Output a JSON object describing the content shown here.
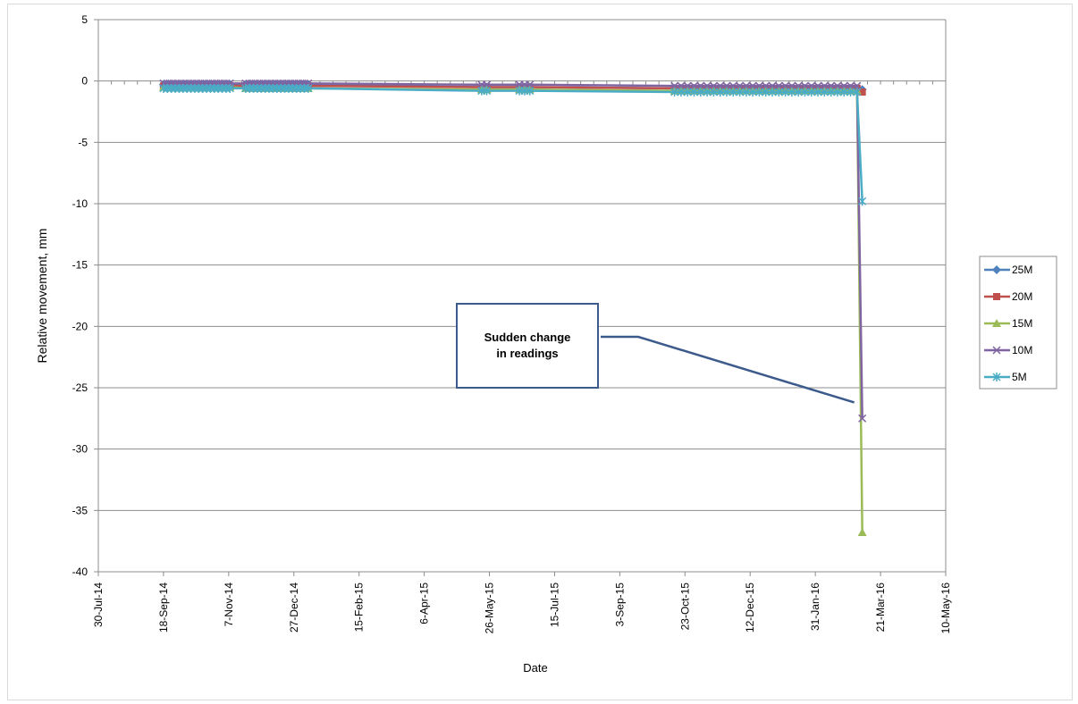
{
  "chart_data": {
    "type": "line",
    "xlabel": "Date",
    "ylabel": "Relative movement, mm",
    "ylim": [
      -40,
      5
    ],
    "yticks": [
      5,
      0,
      -5,
      -10,
      -15,
      -20,
      -25,
      -30,
      -35,
      -40
    ],
    "xlim": [
      "2014-07-30",
      "2016-05-10"
    ],
    "xtick_labels": [
      "30-Jul-14",
      "18-Sep-14",
      "7-Nov-14",
      "27-Dec-14",
      "15-Feb-15",
      "6-Apr-15",
      "26-May-15",
      "15-Jul-15",
      "3-Sep-15",
      "23-Oct-15",
      "12-Dec-15",
      "31-Jan-16",
      "21-Mar-16",
      "10-May-16"
    ],
    "grid": "horizontal",
    "legend_position": "right",
    "series": [
      {
        "name": "25M",
        "color": "#4f81bd",
        "marker": "diamond",
        "dates": [
          "2014-09-18",
          "2014-09-21",
          "2014-09-24",
          "2014-09-27",
          "2014-09-30",
          "2014-10-03",
          "2014-10-06",
          "2014-10-09",
          "2014-10-12",
          "2014-10-15",
          "2014-10-18",
          "2014-10-21",
          "2014-10-24",
          "2014-10-27",
          "2014-10-30",
          "2014-11-02",
          "2014-11-05",
          "2014-11-08",
          "2014-11-20",
          "2014-11-23",
          "2014-11-26",
          "2014-11-29",
          "2014-12-02",
          "2014-12-05",
          "2014-12-08",
          "2014-12-11",
          "2014-12-14",
          "2014-12-17",
          "2014-12-20",
          "2014-12-23",
          "2014-12-26",
          "2014-12-29",
          "2015-01-01",
          "2015-01-04",
          "2015-01-07",
          "2015-05-20",
          "2015-05-24",
          "2015-06-18",
          "2015-06-22",
          "2015-06-26",
          "2015-10-15",
          "2015-10-20",
          "2015-10-25",
          "2015-10-30",
          "2015-11-04",
          "2015-11-09",
          "2015-11-14",
          "2015-11-19",
          "2015-11-24",
          "2015-11-29",
          "2015-12-04",
          "2015-12-09",
          "2015-12-14",
          "2015-12-19",
          "2015-12-24",
          "2015-12-29",
          "2016-01-03",
          "2016-01-08",
          "2016-01-13",
          "2016-01-18",
          "2016-01-23",
          "2016-01-28",
          "2016-02-02",
          "2016-02-07",
          "2016-02-12",
          "2016-02-17",
          "2016-02-22",
          "2016-02-27",
          "2016-03-03",
          "2016-03-07"
        ],
        "values": [
          -0.3,
          -0.3,
          -0.3,
          -0.3,
          -0.3,
          -0.3,
          -0.3,
          -0.3,
          -0.3,
          -0.3,
          -0.3,
          -0.3,
          -0.3,
          -0.3,
          -0.3,
          -0.3,
          -0.3,
          -0.3,
          -0.3,
          -0.3,
          -0.3,
          -0.3,
          -0.3,
          -0.3,
          -0.3,
          -0.3,
          -0.3,
          -0.3,
          -0.3,
          -0.3,
          -0.3,
          -0.3,
          -0.3,
          -0.3,
          -0.3,
          -0.5,
          -0.5,
          -0.5,
          -0.5,
          -0.5,
          -0.6,
          -0.6,
          -0.6,
          -0.6,
          -0.6,
          -0.6,
          -0.6,
          -0.6,
          -0.6,
          -0.6,
          -0.6,
          -0.6,
          -0.6,
          -0.6,
          -0.6,
          -0.6,
          -0.6,
          -0.6,
          -0.6,
          -0.6,
          -0.6,
          -0.6,
          -0.6,
          -0.6,
          -0.6,
          -0.6,
          -0.6,
          -0.6,
          -0.6,
          -0.7
        ]
      },
      {
        "name": "20M",
        "color": "#c0504d",
        "marker": "square",
        "dates": [
          "2014-09-18",
          "2014-09-21",
          "2014-09-24",
          "2014-09-27",
          "2014-09-30",
          "2014-10-03",
          "2014-10-06",
          "2014-10-09",
          "2014-10-12",
          "2014-10-15",
          "2014-10-18",
          "2014-10-21",
          "2014-10-24",
          "2014-10-27",
          "2014-10-30",
          "2014-11-02",
          "2014-11-05",
          "2014-11-08",
          "2014-11-20",
          "2014-11-23",
          "2014-11-26",
          "2014-11-29",
          "2014-12-02",
          "2014-12-05",
          "2014-12-08",
          "2014-12-11",
          "2014-12-14",
          "2014-12-17",
          "2014-12-20",
          "2014-12-23",
          "2014-12-26",
          "2014-12-29",
          "2015-01-01",
          "2015-01-04",
          "2015-01-07",
          "2015-05-20",
          "2015-05-24",
          "2015-06-18",
          "2015-06-22",
          "2015-06-26",
          "2015-10-15",
          "2015-10-20",
          "2015-10-25",
          "2015-10-30",
          "2015-11-04",
          "2015-11-09",
          "2015-11-14",
          "2015-11-19",
          "2015-11-24",
          "2015-11-29",
          "2015-12-04",
          "2015-12-09",
          "2015-12-14",
          "2015-12-19",
          "2015-12-24",
          "2015-12-29",
          "2016-01-03",
          "2016-01-08",
          "2016-01-13",
          "2016-01-18",
          "2016-01-23",
          "2016-01-28",
          "2016-02-02",
          "2016-02-07",
          "2016-02-12",
          "2016-02-17",
          "2016-02-22",
          "2016-02-27",
          "2016-03-03",
          "2016-03-07"
        ],
        "values": [
          -0.4,
          -0.4,
          -0.4,
          -0.4,
          -0.4,
          -0.4,
          -0.4,
          -0.4,
          -0.4,
          -0.4,
          -0.4,
          -0.4,
          -0.4,
          -0.4,
          -0.4,
          -0.4,
          -0.4,
          -0.4,
          -0.4,
          -0.4,
          -0.4,
          -0.4,
          -0.4,
          -0.4,
          -0.4,
          -0.4,
          -0.4,
          -0.4,
          -0.4,
          -0.4,
          -0.4,
          -0.4,
          -0.4,
          -0.4,
          -0.4,
          -0.5,
          -0.5,
          -0.5,
          -0.5,
          -0.5,
          -0.6,
          -0.6,
          -0.6,
          -0.6,
          -0.6,
          -0.6,
          -0.6,
          -0.6,
          -0.6,
          -0.6,
          -0.6,
          -0.6,
          -0.6,
          -0.6,
          -0.6,
          -0.6,
          -0.6,
          -0.6,
          -0.6,
          -0.6,
          -0.6,
          -0.6,
          -0.6,
          -0.6,
          -0.6,
          -0.6,
          -0.6,
          -0.6,
          -0.6,
          -0.9
        ]
      },
      {
        "name": "15M",
        "color": "#9bbb59",
        "marker": "triangle",
        "dates": [
          "2014-09-18",
          "2014-09-21",
          "2014-09-24",
          "2014-09-27",
          "2014-09-30",
          "2014-10-03",
          "2014-10-06",
          "2014-10-09",
          "2014-10-12",
          "2014-10-15",
          "2014-10-18",
          "2014-10-21",
          "2014-10-24",
          "2014-10-27",
          "2014-10-30",
          "2014-11-02",
          "2014-11-05",
          "2014-11-08",
          "2014-11-20",
          "2014-11-23",
          "2014-11-26",
          "2014-11-29",
          "2014-12-02",
          "2014-12-05",
          "2014-12-08",
          "2014-12-11",
          "2014-12-14",
          "2014-12-17",
          "2014-12-20",
          "2014-12-23",
          "2014-12-26",
          "2014-12-29",
          "2015-01-01",
          "2015-01-04",
          "2015-01-07",
          "2015-05-20",
          "2015-05-24",
          "2015-06-18",
          "2015-06-22",
          "2015-06-26",
          "2015-10-15",
          "2015-10-20",
          "2015-10-25",
          "2015-10-30",
          "2015-11-04",
          "2015-11-09",
          "2015-11-14",
          "2015-11-19",
          "2015-11-24",
          "2015-11-29",
          "2015-12-04",
          "2015-12-09",
          "2015-12-14",
          "2015-12-19",
          "2015-12-24",
          "2015-12-29",
          "2016-01-03",
          "2016-01-08",
          "2016-01-13",
          "2016-01-18",
          "2016-01-23",
          "2016-01-28",
          "2016-02-02",
          "2016-02-07",
          "2016-02-12",
          "2016-02-17",
          "2016-02-22",
          "2016-02-27",
          "2016-03-03",
          "2016-03-07"
        ],
        "values": [
          -0.5,
          -0.5,
          -0.5,
          -0.5,
          -0.5,
          -0.5,
          -0.5,
          -0.5,
          -0.5,
          -0.5,
          -0.5,
          -0.5,
          -0.5,
          -0.5,
          -0.5,
          -0.5,
          -0.5,
          -0.5,
          -0.6,
          -0.6,
          -0.6,
          -0.6,
          -0.6,
          -0.6,
          -0.6,
          -0.6,
          -0.6,
          -0.6,
          -0.6,
          -0.6,
          -0.6,
          -0.6,
          -0.6,
          -0.6,
          -0.6,
          -0.7,
          -0.7,
          -0.7,
          -0.7,
          -0.7,
          -0.8,
          -0.8,
          -0.8,
          -0.8,
          -0.8,
          -0.8,
          -0.8,
          -0.8,
          -0.8,
          -0.8,
          -0.8,
          -0.8,
          -0.8,
          -0.8,
          -0.8,
          -0.8,
          -0.8,
          -0.8,
          -0.8,
          -0.8,
          -0.8,
          -0.8,
          -0.8,
          -0.8,
          -0.8,
          -0.8,
          -0.8,
          -0.8,
          -0.8,
          -36.8
        ]
      },
      {
        "name": "10M",
        "color": "#8064a2",
        "marker": "x",
        "dates": [
          "2014-09-18",
          "2014-09-21",
          "2014-09-24",
          "2014-09-27",
          "2014-09-30",
          "2014-10-03",
          "2014-10-06",
          "2014-10-09",
          "2014-10-12",
          "2014-10-15",
          "2014-10-18",
          "2014-10-21",
          "2014-10-24",
          "2014-10-27",
          "2014-10-30",
          "2014-11-02",
          "2014-11-05",
          "2014-11-08",
          "2014-11-20",
          "2014-11-23",
          "2014-11-26",
          "2014-11-29",
          "2014-12-02",
          "2014-12-05",
          "2014-12-08",
          "2014-12-11",
          "2014-12-14",
          "2014-12-17",
          "2014-12-20",
          "2014-12-23",
          "2014-12-26",
          "2014-12-29",
          "2015-01-01",
          "2015-01-04",
          "2015-01-07",
          "2015-05-20",
          "2015-05-24",
          "2015-06-18",
          "2015-06-22",
          "2015-06-26",
          "2015-10-15",
          "2015-10-20",
          "2015-10-25",
          "2015-10-30",
          "2015-11-04",
          "2015-11-09",
          "2015-11-14",
          "2015-11-19",
          "2015-11-24",
          "2015-11-29",
          "2015-12-04",
          "2015-12-09",
          "2015-12-14",
          "2015-12-19",
          "2015-12-24",
          "2015-12-29",
          "2016-01-03",
          "2016-01-08",
          "2016-01-13",
          "2016-01-18",
          "2016-01-23",
          "2016-01-28",
          "2016-02-02",
          "2016-02-07",
          "2016-02-12",
          "2016-02-17",
          "2016-02-22",
          "2016-02-27",
          "2016-03-03",
          "2016-03-07"
        ],
        "values": [
          -0.2,
          -0.2,
          -0.2,
          -0.2,
          -0.2,
          -0.2,
          -0.2,
          -0.2,
          -0.2,
          -0.2,
          -0.2,
          -0.2,
          -0.2,
          -0.2,
          -0.2,
          -0.2,
          -0.2,
          -0.2,
          -0.2,
          -0.2,
          -0.2,
          -0.2,
          -0.2,
          -0.2,
          -0.2,
          -0.2,
          -0.2,
          -0.2,
          -0.2,
          -0.2,
          -0.2,
          -0.2,
          -0.2,
          -0.2,
          -0.2,
          -0.3,
          -0.3,
          -0.3,
          -0.3,
          -0.3,
          -0.4,
          -0.4,
          -0.4,
          -0.4,
          -0.4,
          -0.4,
          -0.4,
          -0.4,
          -0.4,
          -0.4,
          -0.4,
          -0.4,
          -0.4,
          -0.4,
          -0.4,
          -0.4,
          -0.4,
          -0.4,
          -0.4,
          -0.4,
          -0.4,
          -0.4,
          -0.4,
          -0.4,
          -0.4,
          -0.4,
          -0.4,
          -0.4,
          -0.4,
          -27.5
        ]
      },
      {
        "name": "5M",
        "color": "#4bacc6",
        "marker": "asterisk",
        "dates": [
          "2014-09-18",
          "2014-09-21",
          "2014-09-24",
          "2014-09-27",
          "2014-09-30",
          "2014-10-03",
          "2014-10-06",
          "2014-10-09",
          "2014-10-12",
          "2014-10-15",
          "2014-10-18",
          "2014-10-21",
          "2014-10-24",
          "2014-10-27",
          "2014-10-30",
          "2014-11-02",
          "2014-11-05",
          "2014-11-08",
          "2014-11-20",
          "2014-11-23",
          "2014-11-26",
          "2014-11-29",
          "2014-12-02",
          "2014-12-05",
          "2014-12-08",
          "2014-12-11",
          "2014-12-14",
          "2014-12-17",
          "2014-12-20",
          "2014-12-23",
          "2014-12-26",
          "2014-12-29",
          "2015-01-01",
          "2015-01-04",
          "2015-01-07",
          "2015-05-20",
          "2015-05-24",
          "2015-06-18",
          "2015-06-22",
          "2015-06-26",
          "2015-10-15",
          "2015-10-20",
          "2015-10-25",
          "2015-10-30",
          "2015-11-04",
          "2015-11-09",
          "2015-11-14",
          "2015-11-19",
          "2015-11-24",
          "2015-11-29",
          "2015-12-04",
          "2015-12-09",
          "2015-12-14",
          "2015-12-19",
          "2015-12-24",
          "2015-12-29",
          "2016-01-03",
          "2016-01-08",
          "2016-01-13",
          "2016-01-18",
          "2016-01-23",
          "2016-01-28",
          "2016-02-02",
          "2016-02-07",
          "2016-02-12",
          "2016-02-17",
          "2016-02-22",
          "2016-02-27",
          "2016-03-03",
          "2016-03-07"
        ],
        "values": [
          -0.6,
          -0.6,
          -0.6,
          -0.6,
          -0.6,
          -0.6,
          -0.6,
          -0.6,
          -0.6,
          -0.6,
          -0.6,
          -0.6,
          -0.6,
          -0.6,
          -0.6,
          -0.6,
          -0.6,
          -0.6,
          -0.6,
          -0.6,
          -0.6,
          -0.6,
          -0.6,
          -0.6,
          -0.6,
          -0.6,
          -0.6,
          -0.6,
          -0.6,
          -0.6,
          -0.6,
          -0.6,
          -0.6,
          -0.6,
          -0.6,
          -0.8,
          -0.8,
          -0.8,
          -0.8,
          -0.8,
          -0.9,
          -0.9,
          -0.9,
          -0.9,
          -0.9,
          -0.9,
          -0.9,
          -0.9,
          -0.9,
          -0.9,
          -0.9,
          -0.9,
          -0.9,
          -0.9,
          -0.9,
          -0.9,
          -0.9,
          -0.9,
          -0.9,
          -0.9,
          -0.9,
          -0.9,
          -0.9,
          -0.9,
          -0.9,
          -0.9,
          -0.9,
          -0.9,
          -0.9,
          -9.8
        ]
      }
    ],
    "annotations": [
      {
        "text_line1": "Sudden change",
        "text_line2": "in readings",
        "points_to_series": "10M",
        "points_to_date": "2016-03-07",
        "points_to_value": -26.2
      }
    ]
  }
}
